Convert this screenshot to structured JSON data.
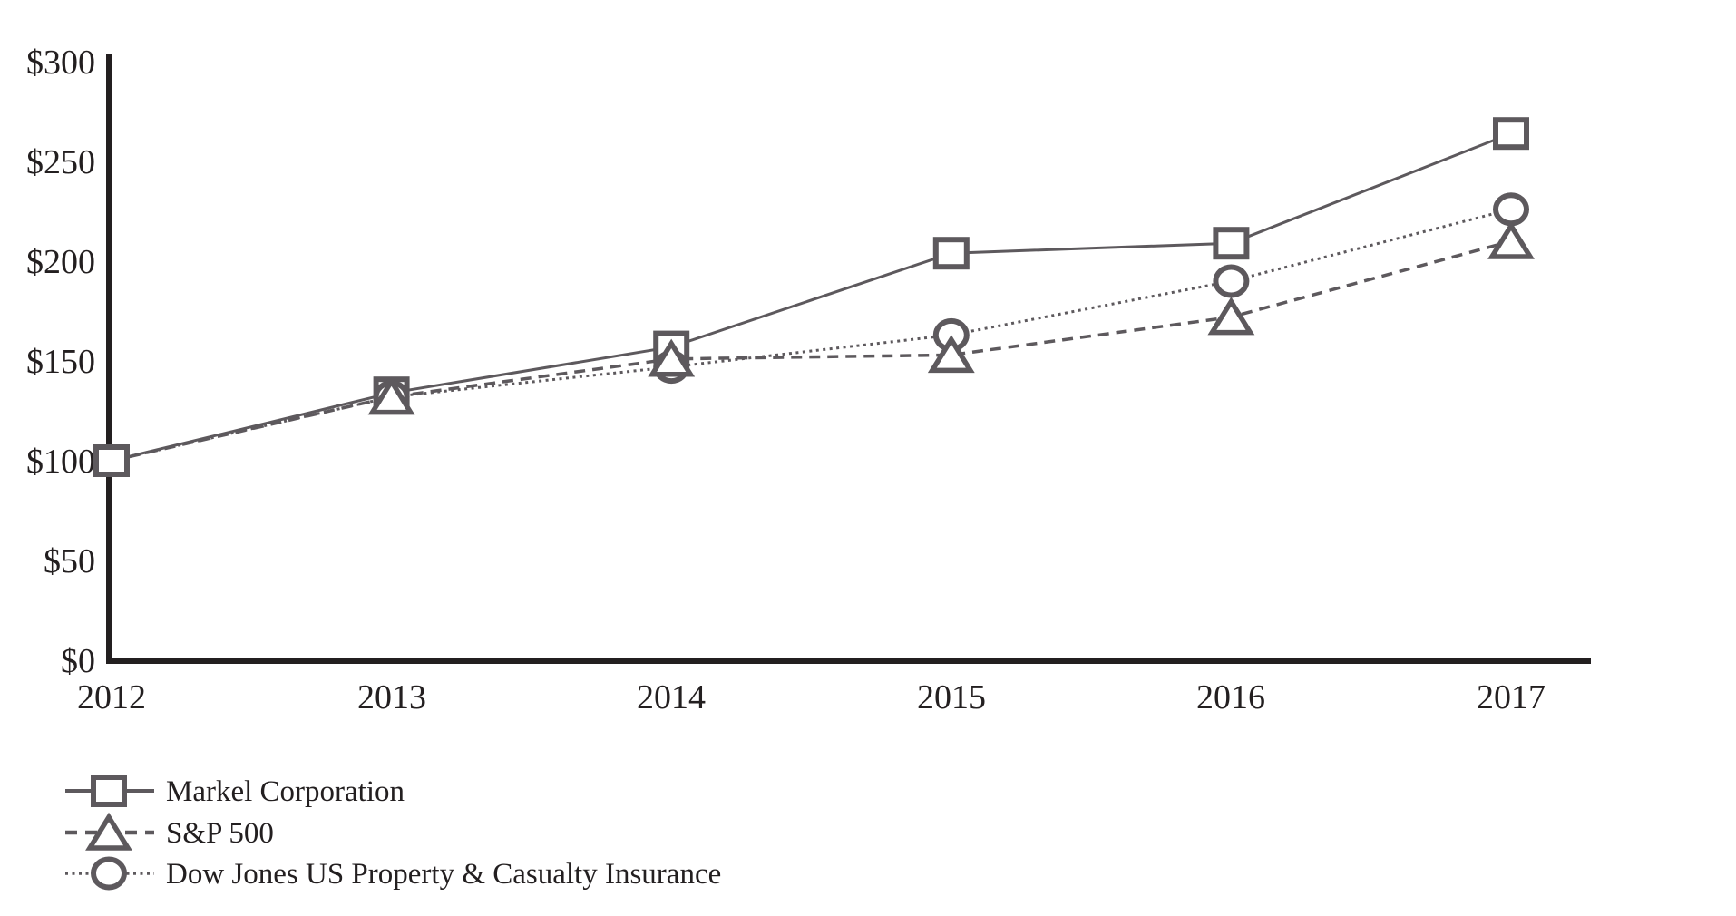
{
  "chart_data": {
    "type": "line",
    "title": "",
    "xlabel": "",
    "ylabel": "",
    "x_labels": [
      "2012",
      "2013",
      "2014",
      "2015",
      "2016",
      "2017"
    ],
    "x": [
      2012,
      2013,
      2014,
      2015,
      2016,
      2017
    ],
    "y_ticks": [
      "$0",
      "$50",
      "$100",
      "$150",
      "$200",
      "$250",
      "$300"
    ],
    "ylim": [
      0,
      300
    ],
    "grid": false,
    "legend_position": "bottom-left",
    "series": [
      {
        "name": "Markel Corporation",
        "marker": "square",
        "line_style": "solid",
        "values": [
          100,
          134,
          157,
          204,
          209,
          264
        ]
      },
      {
        "name": "S&P 500",
        "marker": "triangle",
        "line_style": "dashed",
        "values": [
          100,
          132,
          151,
          153,
          172,
          210
        ]
      },
      {
        "name": "Dow Jones US Property & Casualty Insurance",
        "marker": "circle",
        "line_style": "dotted",
        "values": [
          100,
          132,
          147,
          163,
          190,
          226
        ]
      }
    ],
    "colors": {
      "series_gray": "#5d595d",
      "axis_black": "#231f20",
      "text_black": "#231f20",
      "marker_fill": "#ffffff"
    }
  }
}
